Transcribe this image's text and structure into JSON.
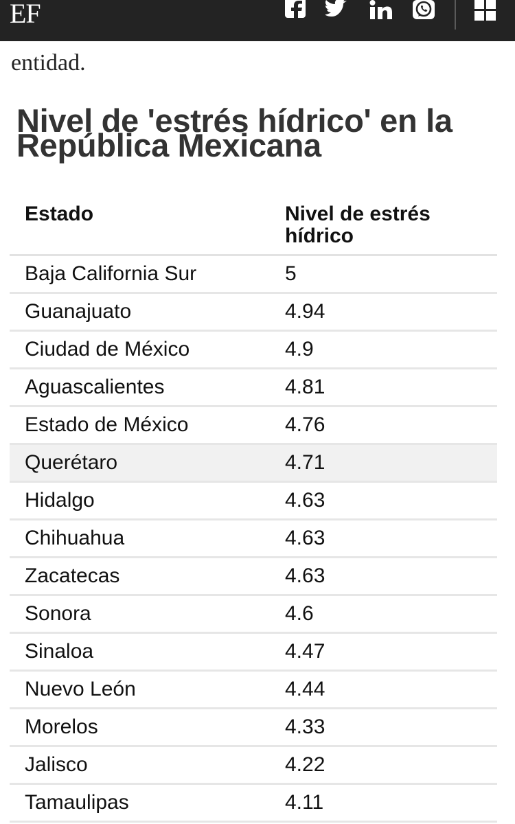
{
  "header": {
    "logo": "EF",
    "icons": [
      "facebook-icon",
      "twitter-icon",
      "linkedin-icon",
      "whatsapp-icon",
      "menu-grid-icon"
    ]
  },
  "article": {
    "intro_fragment": "entidad.",
    "table_title": "Nivel de 'estrés hídrico' en la República Mexicana",
    "columns": [
      "Estado",
      "Nivel de estrés hídrico"
    ],
    "rows": [
      {
        "estado": "Baja California Sur",
        "nivel": "5"
      },
      {
        "estado": "Guanajuato",
        "nivel": "4.94"
      },
      {
        "estado": "Ciudad de México",
        "nivel": "4.9"
      },
      {
        "estado": "Aguascalientes",
        "nivel": "4.81"
      },
      {
        "estado": "Estado de México",
        "nivel": "4.76"
      },
      {
        "estado": "Querétaro",
        "nivel": "4.71"
      },
      {
        "estado": "Hidalgo",
        "nivel": "4.63"
      },
      {
        "estado": "Chihuahua",
        "nivel": "4.63"
      },
      {
        "estado": "Zacatecas",
        "nivel": "4.63"
      },
      {
        "estado": "Sonora",
        "nivel": "4.6"
      },
      {
        "estado": "Sinaloa",
        "nivel": "4.47"
      },
      {
        "estado": "Nuevo León",
        "nivel": "4.44"
      },
      {
        "estado": "Morelos",
        "nivel": "4.33"
      },
      {
        "estado": "Jalisco",
        "nivel": "4.22"
      },
      {
        "estado": "Tamaulipas",
        "nivel": "4.11"
      }
    ]
  },
  "colors": {
    "topbar": "#232323",
    "row_highlight": "#f1f1f1",
    "title": "#333333"
  }
}
